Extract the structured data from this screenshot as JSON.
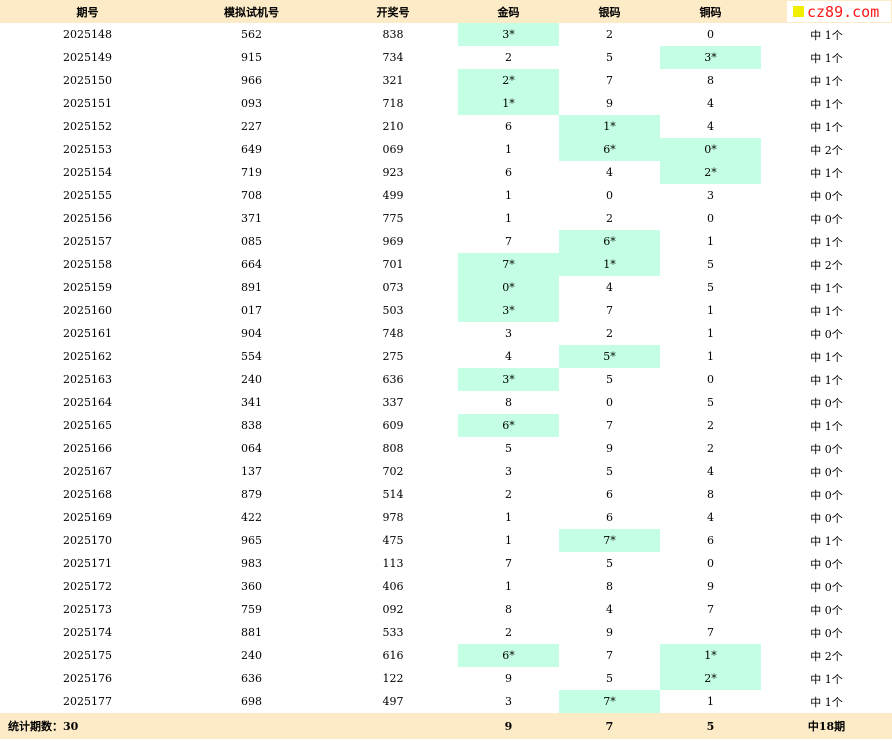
{
  "logo": {
    "text": "cz89.com",
    "square_color": "#f2ee00",
    "text_color": "#ff1616"
  },
  "headers": [
    "期号",
    "模拟试机号",
    "开奖号",
    "金码",
    "银码",
    "铜码",
    ""
  ],
  "rows": [
    {
      "period": "2025148",
      "sim": "562",
      "draw": "838",
      "gold": "3*",
      "silver": "2",
      "bronze": "0",
      "hit": "中 1个"
    },
    {
      "period": "2025149",
      "sim": "915",
      "draw": "734",
      "gold": "2",
      "silver": "5",
      "bronze": "3*",
      "hit": "中 1个"
    },
    {
      "period": "2025150",
      "sim": "966",
      "draw": "321",
      "gold": "2*",
      "silver": "7",
      "bronze": "8",
      "hit": "中 1个"
    },
    {
      "period": "2025151",
      "sim": "093",
      "draw": "718",
      "gold": "1*",
      "silver": "9",
      "bronze": "4",
      "hit": "中 1个"
    },
    {
      "period": "2025152",
      "sim": "227",
      "draw": "210",
      "gold": "6",
      "silver": "1*",
      "bronze": "4",
      "hit": "中 1个"
    },
    {
      "period": "2025153",
      "sim": "649",
      "draw": "069",
      "gold": "1",
      "silver": "6*",
      "bronze": "0*",
      "hit": "中 2个"
    },
    {
      "period": "2025154",
      "sim": "719",
      "draw": "923",
      "gold": "6",
      "silver": "4",
      "bronze": "2*",
      "hit": "中 1个"
    },
    {
      "period": "2025155",
      "sim": "708",
      "draw": "499",
      "gold": "1",
      "silver": "0",
      "bronze": "3",
      "hit": "中 0个"
    },
    {
      "period": "2025156",
      "sim": "371",
      "draw": "775",
      "gold": "1",
      "silver": "2",
      "bronze": "0",
      "hit": "中 0个"
    },
    {
      "period": "2025157",
      "sim": "085",
      "draw": "969",
      "gold": "7",
      "silver": "6*",
      "bronze": "1",
      "hit": "中 1个"
    },
    {
      "period": "2025158",
      "sim": "664",
      "draw": "701",
      "gold": "7*",
      "silver": "1*",
      "bronze": "5",
      "hit": "中 2个"
    },
    {
      "period": "2025159",
      "sim": "891",
      "draw": "073",
      "gold": "0*",
      "silver": "4",
      "bronze": "5",
      "hit": "中 1个"
    },
    {
      "period": "2025160",
      "sim": "017",
      "draw": "503",
      "gold": "3*",
      "silver": "7",
      "bronze": "1",
      "hit": "中 1个"
    },
    {
      "period": "2025161",
      "sim": "904",
      "draw": "748",
      "gold": "3",
      "silver": "2",
      "bronze": "1",
      "hit": "中 0个"
    },
    {
      "period": "2025162",
      "sim": "554",
      "draw": "275",
      "gold": "4",
      "silver": "5*",
      "bronze": "1",
      "hit": "中 1个"
    },
    {
      "period": "2025163",
      "sim": "240",
      "draw": "636",
      "gold": "3*",
      "silver": "5",
      "bronze": "0",
      "hit": "中 1个"
    },
    {
      "period": "2025164",
      "sim": "341",
      "draw": "337",
      "gold": "8",
      "silver": "0",
      "bronze": "5",
      "hit": "中 0个"
    },
    {
      "period": "2025165",
      "sim": "838",
      "draw": "609",
      "gold": "6*",
      "silver": "7",
      "bronze": "2",
      "hit": "中 1个"
    },
    {
      "period": "2025166",
      "sim": "064",
      "draw": "808",
      "gold": "5",
      "silver": "9",
      "bronze": "2",
      "hit": "中 0个"
    },
    {
      "period": "2025167",
      "sim": "137",
      "draw": "702",
      "gold": "3",
      "silver": "5",
      "bronze": "4",
      "hit": "中 0个"
    },
    {
      "period": "2025168",
      "sim": "879",
      "draw": "514",
      "gold": "2",
      "silver": "6",
      "bronze": "8",
      "hit": "中 0个"
    },
    {
      "period": "2025169",
      "sim": "422",
      "draw": "978",
      "gold": "1",
      "silver": "6",
      "bronze": "4",
      "hit": "中 0个"
    },
    {
      "period": "2025170",
      "sim": "965",
      "draw": "475",
      "gold": "1",
      "silver": "7*",
      "bronze": "6",
      "hit": "中 1个"
    },
    {
      "period": "2025171",
      "sim": "983",
      "draw": "113",
      "gold": "7",
      "silver": "5",
      "bronze": "0",
      "hit": "中 0个"
    },
    {
      "period": "2025172",
      "sim": "360",
      "draw": "406",
      "gold": "1",
      "silver": "8",
      "bronze": "9",
      "hit": "中 0个"
    },
    {
      "period": "2025173",
      "sim": "759",
      "draw": "092",
      "gold": "8",
      "silver": "4",
      "bronze": "7",
      "hit": "中 0个"
    },
    {
      "period": "2025174",
      "sim": "881",
      "draw": "533",
      "gold": "2",
      "silver": "9",
      "bronze": "7",
      "hit": "中 0个"
    },
    {
      "period": "2025175",
      "sim": "240",
      "draw": "616",
      "gold": "6*",
      "silver": "7",
      "bronze": "1*",
      "hit": "中 2个"
    },
    {
      "period": "2025176",
      "sim": "636",
      "draw": "122",
      "gold": "9",
      "silver": "5",
      "bronze": "2*",
      "hit": "中 1个"
    },
    {
      "period": "2025177",
      "sim": "698",
      "draw": "497",
      "gold": "3",
      "silver": "7*",
      "bronze": "1",
      "hit": "中 1个"
    }
  ],
  "footer": {
    "label": "统计期数：30",
    "gold_total": "9",
    "silver_total": "7",
    "bronze_total": "5",
    "hit_total": "中18期"
  },
  "colors": {
    "header_bg": "#fdebc7",
    "hit_cell_bg": "#c4ffe5"
  }
}
